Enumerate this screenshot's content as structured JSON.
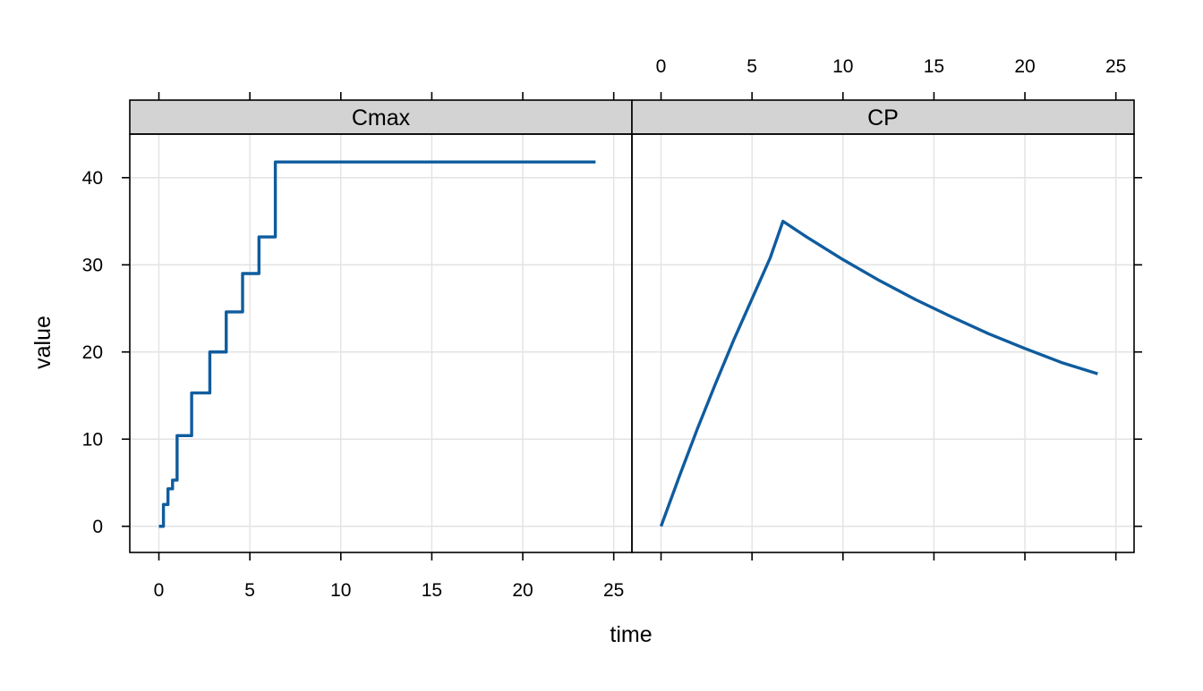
{
  "chart_data": {
    "type": "line",
    "xlabel": "time",
    "ylabel": "value",
    "xlim": [
      -1.6,
      26
    ],
    "ylim": [
      -3,
      45
    ],
    "x_ticks": [
      0,
      5,
      10,
      15,
      20,
      25
    ],
    "y_ticks": [
      0,
      10,
      20,
      30,
      40
    ],
    "grid": true,
    "line_color": "#0f5c9e",
    "grid_color": "#e3e3e3",
    "strip_color": "#d3d3d3",
    "panels": [
      {
        "name": "Cmax",
        "step": true,
        "x": [
          0,
          0.25,
          0.5,
          0.75,
          1.0,
          1.8,
          2.8,
          3.7,
          4.6,
          5.5,
          6.4,
          24
        ],
        "y": [
          0,
          2.5,
          4.3,
          5.3,
          10.4,
          15.3,
          20.0,
          24.6,
          29.0,
          33.2,
          41.8,
          41.8
        ]
      },
      {
        "name": "CP",
        "step": false,
        "x": [
          0,
          1,
          2,
          3,
          4,
          5,
          6,
          6.7,
          8,
          10,
          12,
          14,
          16,
          18,
          20,
          22,
          24
        ],
        "y": [
          0,
          5.7,
          11.2,
          16.4,
          21.4,
          26.1,
          30.8,
          35.0,
          33.2,
          30.6,
          28.2,
          26.0,
          24.0,
          22.1,
          20.4,
          18.8,
          17.5
        ]
      }
    ]
  }
}
